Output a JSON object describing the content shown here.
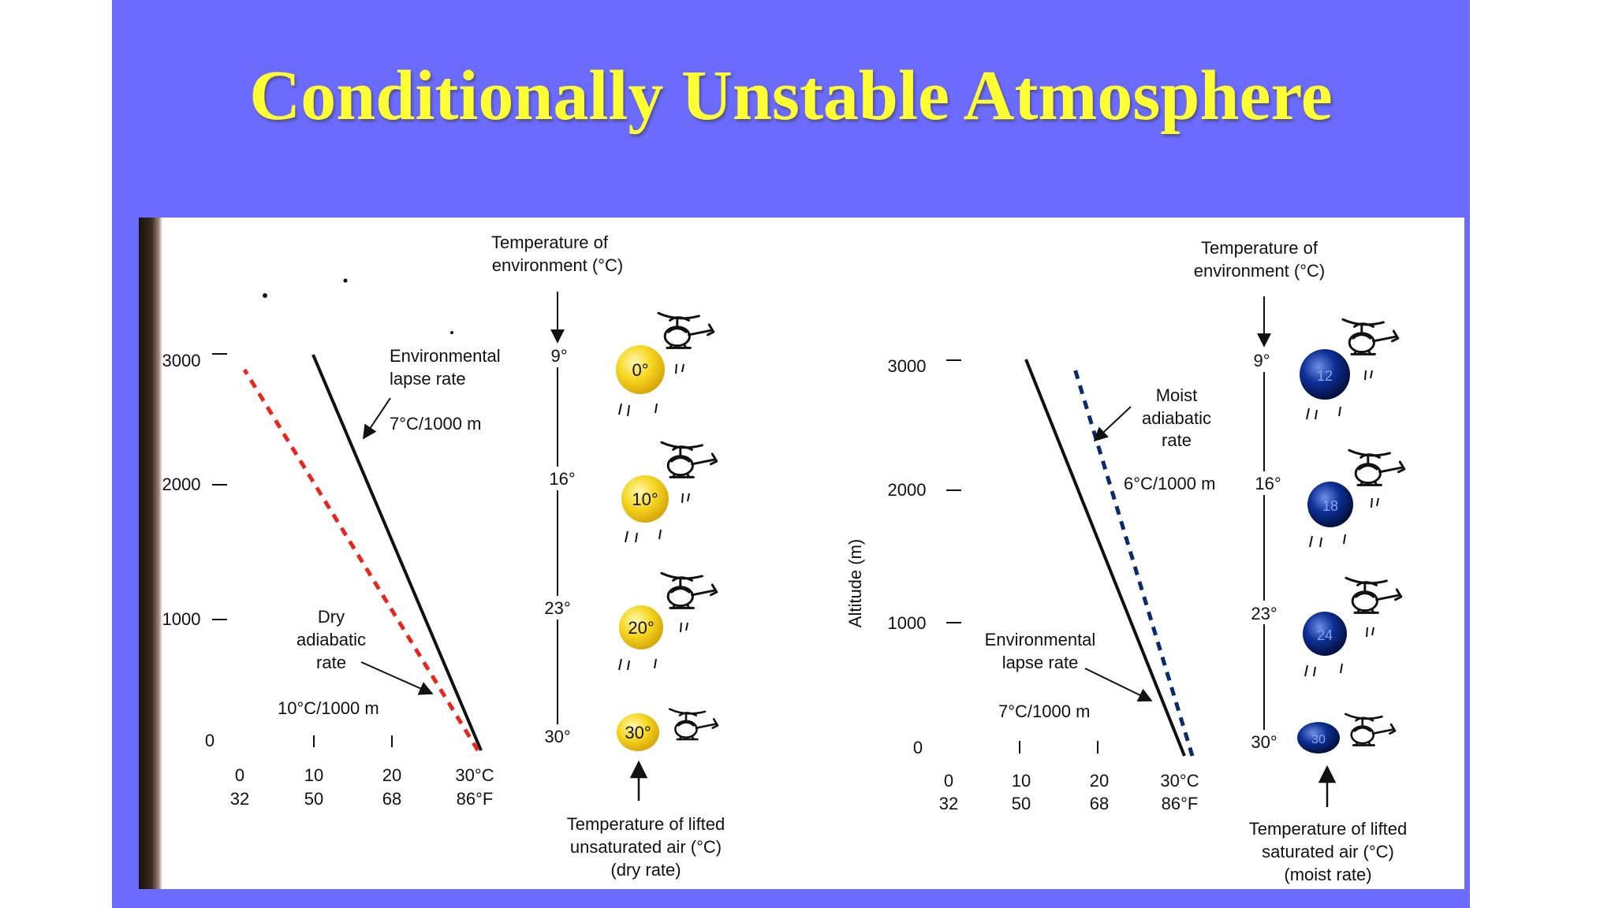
{
  "title": "Conditionally Unstable Atmosphere",
  "colors": {
    "slide_bg": "#6b6bff",
    "title": "#ffff33",
    "dry_line": "#e8261e",
    "moist_line": "#0b2a6b",
    "unsaturated_balloon": "#f2d21f",
    "saturated_balloon": "#0c2d8c"
  },
  "icons": {
    "parcel": "helicopter-icon"
  },
  "left_panel": {
    "altitude_ticks": [
      "3000",
      "2000",
      "1000",
      "0"
    ],
    "temp_ticks_c": [
      "0",
      "10",
      "20",
      "30°C"
    ],
    "temp_ticks_f": [
      "32",
      "50",
      "68",
      "86°F"
    ],
    "env_line_label": [
      "Environmental",
      "lapse rate"
    ],
    "env_rate": "7°C/1000 m",
    "dry_line_label": [
      "Dry",
      "adiabatic",
      "rate"
    ],
    "dry_rate": "10°C/1000 m",
    "env_temp_title": [
      "Temperature of",
      "environment (°C)"
    ],
    "env_temps": [
      "9°",
      "16°",
      "23°",
      "30°"
    ],
    "parcel_temps": [
      "0°",
      "10°",
      "20°",
      "30°"
    ],
    "parcel_title": [
      "Temperature of lifted",
      "unsaturated air (°C)",
      "(dry rate)"
    ]
  },
  "right_panel": {
    "y_axis_label": "Altitude (m)",
    "altitude_ticks": [
      "3000",
      "2000",
      "1000",
      "0"
    ],
    "temp_ticks_c": [
      "0",
      "10",
      "20",
      "30°C"
    ],
    "temp_ticks_f": [
      "32",
      "50",
      "68",
      "86°F"
    ],
    "moist_line_label": [
      "Moist",
      "adiabatic",
      "rate"
    ],
    "moist_rate": "6°C/1000 m",
    "env_line_label": [
      "Environmental",
      "lapse rate"
    ],
    "env_rate": "7°C/1000 m",
    "env_temp_title": [
      "Temperature of",
      "environment (°C)"
    ],
    "env_temps": [
      "9°",
      "16°",
      "23°",
      "30°"
    ],
    "parcel_temps": [
      "12",
      "18",
      "24",
      "30"
    ],
    "parcel_title": [
      "Temperature of lifted",
      "saturated air (°C)",
      "(moist rate)"
    ]
  }
}
